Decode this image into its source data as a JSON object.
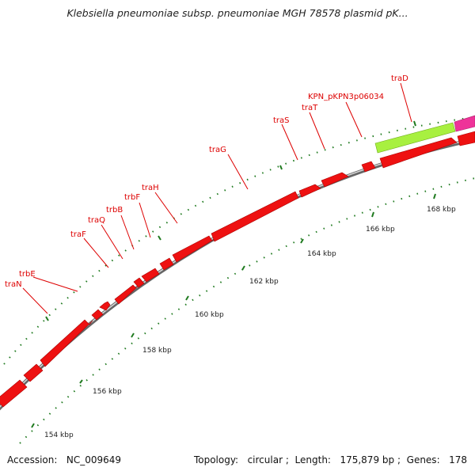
{
  "title": "Klebsiella pneumoniae subsp. pneumoniae MGH 78578 plasmid pK...",
  "footer": {
    "accession_label": "Accession:",
    "accession": "NC_009649",
    "topology_label": "Topology:",
    "topology": "circular",
    "length_label": "Length:",
    "length": "175,879 bp",
    "genes_label": "Genes:",
    "genes": "178"
  },
  "scale": {
    "ticks": [
      {
        "label": "154 kbp"
      },
      {
        "label": "156 kbp"
      },
      {
        "label": "158 kbp"
      },
      {
        "label": "160 kbp"
      },
      {
        "label": "162 kbp"
      },
      {
        "label": "164 kbp"
      },
      {
        "label": "166 kbp"
      },
      {
        "label": "168 kbp"
      }
    ]
  },
  "genes": [
    {
      "label": "traD"
    },
    {
      "label": "KPN_pKPN3p06034"
    },
    {
      "label": "traT"
    },
    {
      "label": "traS"
    },
    {
      "label": "traG"
    },
    {
      "label": "traH"
    },
    {
      "label": "trbF"
    },
    {
      "label": "trbB"
    },
    {
      "label": "traQ"
    },
    {
      "label": "traF"
    },
    {
      "label": "trbE"
    },
    {
      "label": "traN"
    }
  ],
  "colors": {
    "gene_forward": "#ee1111",
    "gene_lime": "#a8f040",
    "gene_magenta": "#ee3399",
    "backbone": "#888888",
    "tick": "#1f7a1f",
    "label": "#dd0000"
  }
}
